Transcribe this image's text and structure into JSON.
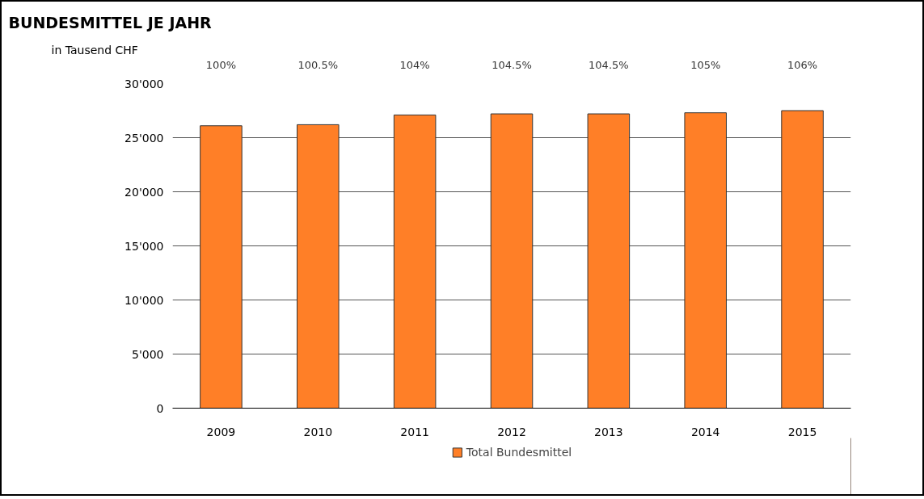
{
  "chart_data": {
    "type": "bar",
    "title": "BUNDESMITTEL JE JAHR",
    "ylabel": "in Tausend CHF",
    "categories": [
      "2009",
      "2010",
      "2011",
      "2012",
      "2013",
      "2014",
      "2015"
    ],
    "series": [
      {
        "name": "Total Bundesmittel",
        "color": "#ff7f27",
        "values": [
          26100,
          26200,
          27100,
          27200,
          27200,
          27300,
          27500
        ]
      }
    ],
    "ylim": [
      0,
      30000
    ],
    "yticks": [
      {
        "value": 0,
        "label": "0"
      },
      {
        "value": 5000,
        "label": "5'000"
      },
      {
        "value": 10000,
        "label": "10'000"
      },
      {
        "value": 15000,
        "label": "15'000"
      },
      {
        "value": 20000,
        "label": "20'000"
      },
      {
        "value": 25000,
        "label": "25'000"
      },
      {
        "value": 30000,
        "label": "30'000"
      }
    ],
    "grid": "y",
    "legend": "bottom",
    "annotations": [
      "100%",
      "100.5%",
      "104%",
      "104.5%",
      "104.5%",
      "105%",
      "106%"
    ]
  }
}
